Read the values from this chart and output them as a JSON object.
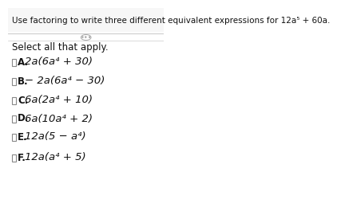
{
  "title": "Use factoring to write three different equivalent expressions for 12a⁵ + 60a.",
  "subtitle": "Select all that apply.",
  "options": [
    {
      "label": "A.",
      "expr": "2a(6a⁴ + 30)"
    },
    {
      "label": "B.",
      "expr": "− 2a(6a⁴ − 30)"
    },
    {
      "label": "C.",
      "expr": "6a(2a⁴ + 10)"
    },
    {
      "label": "D.",
      "expr": "6a(10a⁴ + 2)"
    },
    {
      "label": "E.",
      "expr": "12a(5 − a⁴)"
    },
    {
      "label": "F.",
      "expr": "12a(a⁴ + 5)"
    }
  ],
  "bg_color": "#ffffff",
  "header_bg": "#f0f0f0",
  "title_fontsize": 7.5,
  "subtitle_fontsize": 8.5,
  "option_fontsize": 9.5,
  "label_fontsize": 8.5,
  "checkbox_color": "#888888",
  "text_color": "#111111",
  "divider_color": "#cccccc",
  "header_color": "#f7f7f7",
  "dots_color": "#aaaaaa"
}
